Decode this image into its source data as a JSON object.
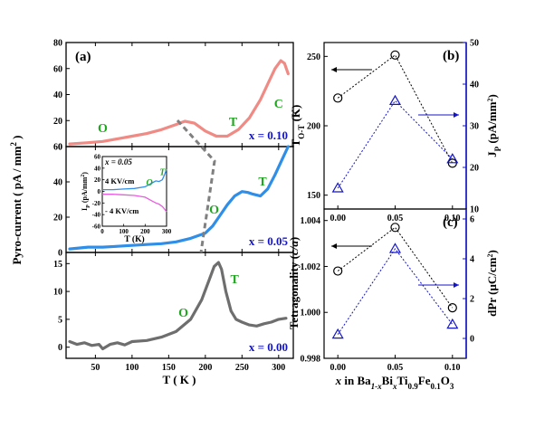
{
  "colors": {
    "x010": "#f08a84",
    "x005": "#2f8fe8",
    "x000": "#6e6e6e",
    "phase": "#1fa81f",
    "blue": "#1414c8",
    "inset_pos": "#2f8fe8",
    "inset_neg": "#e85ce0"
  },
  "chart_data": [
    {
      "id": "panel-a",
      "type": "line",
      "panel_label": "(a)",
      "xlabel": "T ( K )",
      "ylabel": "Pyro-current ( pA / mm² )",
      "xlim": [
        10,
        320
      ],
      "xticks": [
        50,
        100,
        150,
        200,
        250,
        300
      ],
      "subplots": [
        {
          "label": "x = 0.10",
          "ylim": [
            0,
            80
          ],
          "yticks": [
            0,
            20,
            40,
            60,
            80
          ],
          "phase_labels": [
            {
              "text": "O",
              "x": 60,
              "y": 11
            },
            {
              "text": "T",
              "x": 238,
              "y": 16
            },
            {
              "text": "C",
              "x": 300,
              "y": 30
            }
          ],
          "series": [
            {
              "x": [
                15,
                40,
                60,
                80,
                100,
                120,
                140,
                160,
                172,
                185,
                200,
                215,
                230,
                245,
                260,
                275,
                285,
                295,
                303,
                308,
                313
              ],
              "y": [
                2,
                3,
                4,
                6,
                8,
                10,
                13,
                17,
                19.5,
                18,
                12,
                8,
                8,
                13,
                22,
                36,
                48,
                60,
                66,
                64,
                56
              ]
            }
          ]
        },
        {
          "label": "x = 0.05",
          "ylim": [
            0,
            60
          ],
          "yticks": [
            0,
            20,
            40,
            60
          ],
          "phase_labels": [
            {
              "text": "O",
              "x": 212,
              "y": 22
            },
            {
              "text": "T",
              "x": 278,
              "y": 38
            }
          ],
          "series": [
            {
              "x": [
                15,
                40,
                60,
                80,
                100,
                120,
                140,
                160,
                180,
                200,
                210,
                220,
                230,
                240,
                250,
                258,
                265,
                275,
                285,
                295,
                305,
                313
              ],
              "y": [
                2,
                3,
                3,
                3.5,
                4,
                4.5,
                5,
                6,
                8,
                11,
                15,
                21,
                27,
                32,
                34.5,
                34,
                33,
                32,
                36,
                44,
                53,
                60
              ]
            }
          ],
          "inset": {
            "title": "x = 0.05",
            "xlabel": "T (K)",
            "ylabel": "I_P (pA/mm²)",
            "xlim": [
              0,
              300
            ],
            "ylim": [
              -60,
              60
            ],
            "xticks": [
              0,
              100,
              200,
              300
            ],
            "yticks": [
              -60,
              -40,
              -20,
              0,
              20,
              40,
              60
            ],
            "phase_labels": [
              {
                "text": "O",
                "x": 220,
                "y": 10
              },
              {
                "text": "T",
                "x": 280,
                "y": 28
              }
            ],
            "series": [
              {
                "name": "4 KV/cm",
                "x": [
                  0,
                  50,
                  100,
                  150,
                  200,
                  230,
                  250,
                  265,
                  280,
                  290,
                  300
                ],
                "y": [
                  3,
                  3,
                  4,
                  5,
                  8,
                  14,
                  18,
                  17,
                  20,
                  28,
                  38
                ]
              },
              {
                "name": "- 4 KV/cm",
                "x": [
                  0,
                  50,
                  100,
                  150,
                  200,
                  230,
                  250,
                  265,
                  280,
                  290,
                  300
                ],
                "y": [
                  -5,
                  -5,
                  -6,
                  -7,
                  -10,
                  -16,
                  -20,
                  -22,
                  -26,
                  -30,
                  -35
                ]
              }
            ]
          }
        },
        {
          "label": "x = 0.00",
          "ylim": [
            -2,
            17
          ],
          "yticks": [
            0,
            5,
            10,
            15
          ],
          "phase_labels": [
            {
              "text": "O",
              "x": 170,
              "y": 5.5
            },
            {
              "text": "T",
              "x": 240,
              "y": 11.5
            }
          ],
          "series": [
            {
              "x": [
                15,
                25,
                35,
                45,
                55,
                60,
                70,
                80,
                90,
                100,
                120,
                140,
                160,
                180,
                195,
                205,
                212,
                218,
                222,
                228,
                235,
                242,
                250,
                260,
                270,
                280,
                290,
                300,
                310
              ],
              "y": [
                1,
                0.5,
                0.8,
                0.3,
                0.5,
                -0.3,
                0.5,
                0.8,
                0.4,
                1.0,
                1.2,
                1.8,
                2.8,
                5,
                8.5,
                12,
                14.5,
                15.2,
                14,
                10,
                6.5,
                5,
                4.5,
                4.0,
                3.8,
                4.2,
                4.5,
                5,
                5.2
              ]
            }
          ]
        }
      ]
    },
    {
      "id": "panel-b",
      "type": "scatter",
      "panel_label": "(b)",
      "x": [
        0.0,
        0.05,
        0.1
      ],
      "xlim": [
        -0.012,
        0.112
      ],
      "xticks": [
        "0.00",
        "0.05",
        "0.10"
      ],
      "left": {
        "ylabel": "T_O-T (K)",
        "ylim": [
          140,
          260
        ],
        "yticks": [
          150,
          200,
          250
        ],
        "values": [
          220,
          251,
          173
        ]
      },
      "right": {
        "ylabel": "J_P (pA/mm²)",
        "ylim": [
          10,
          50
        ],
        "yticks": [
          10,
          20,
          30,
          40,
          50
        ],
        "values": [
          15,
          36,
          22
        ]
      }
    },
    {
      "id": "panel-c",
      "type": "scatter",
      "panel_label": "(c)",
      "x": [
        0.0,
        0.05,
        0.1
      ],
      "xlim": [
        -0.012,
        0.112
      ],
      "xticks": [
        "0.00",
        "0.05",
        "0.10"
      ],
      "xlabel_parts": [
        "x",
        " in Ba",
        "1-x",
        "Bi",
        "x",
        "Ti",
        "0.9",
        "Fe",
        "0.1",
        "O",
        "3"
      ],
      "left": {
        "ylabel": "Tetragonality (c/a)",
        "ylim": [
          0.998,
          1.0045
        ],
        "yticks": [
          "0.998",
          "1.000",
          "1.002",
          "1.004"
        ],
        "values": [
          1.0018,
          1.0037,
          1.0002
        ]
      },
      "right": {
        "ylabel": "dPr (μC/cm²)",
        "ylim": [
          -1,
          6.5
        ],
        "yticks": [
          0,
          2,
          4,
          6
        ],
        "values": [
          0.2,
          4.5,
          0.7
        ]
      }
    }
  ]
}
